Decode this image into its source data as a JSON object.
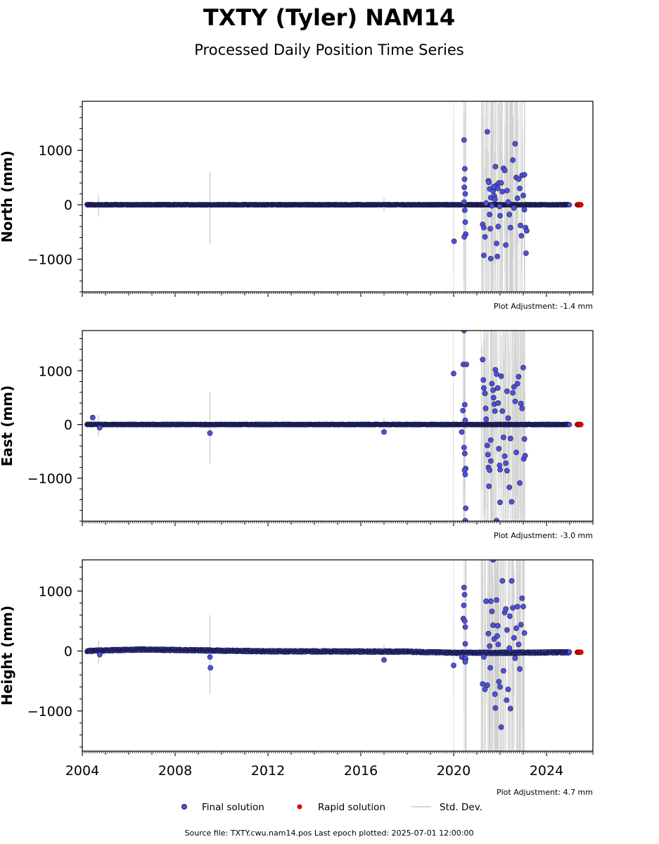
{
  "chart_data": {
    "type": "scatter",
    "title": "TXTY (Tyler) NAM14",
    "subtitle": "Processed Daily Position Time Series",
    "x_ticks": [
      "2004",
      "2008",
      "2012",
      "2016",
      "2020",
      "2024"
    ],
    "xlim": [
      2004.0,
      2026.0
    ],
    "panels": [
      {
        "ylabel": "North (mm)",
        "ylim": [
          -1600,
          1900
        ],
        "yticks": [
          -1000,
          0,
          1000
        ],
        "ytick_labels": [
          "−1000",
          "0",
          "1000"
        ],
        "adjustment": "Plot Adjustment: -1.4 mm",
        "outliers": [
          [
            2020.02,
            -670
          ],
          [
            2020.45,
            1190
          ],
          [
            2020.48,
            660
          ],
          [
            2020.47,
            470
          ],
          [
            2020.46,
            320
          ],
          [
            2020.5,
            200
          ],
          [
            2020.45,
            50
          ],
          [
            2020.48,
            -100
          ],
          [
            2020.5,
            -320
          ],
          [
            2020.52,
            -540
          ],
          [
            2020.46,
            -590
          ],
          [
            2021.25,
            -360
          ],
          [
            2021.3,
            -420
          ],
          [
            2021.35,
            -590
          ],
          [
            2021.3,
            -930
          ],
          [
            2021.45,
            1340
          ],
          [
            2021.5,
            440
          ],
          [
            2021.52,
            410
          ],
          [
            2021.55,
            290
          ],
          [
            2021.6,
            130
          ],
          [
            2021.65,
            -20
          ],
          [
            2021.55,
            -180
          ],
          [
            2021.58,
            -440
          ],
          [
            2021.6,
            -990
          ],
          [
            2021.7,
            250
          ],
          [
            2021.75,
            160
          ],
          [
            2021.78,
            100
          ],
          [
            2021.8,
            700
          ],
          [
            2021.85,
            360
          ],
          [
            2021.9,
            300
          ],
          [
            2021.95,
            400
          ],
          [
            2021.85,
            -710
          ],
          [
            2021.88,
            -950
          ],
          [
            2021.92,
            -400
          ],
          [
            2021.98,
            -30
          ],
          [
            2022.05,
            400
          ],
          [
            2022.1,
            240
          ],
          [
            2022.15,
            670
          ],
          [
            2022.2,
            630
          ],
          [
            2022.25,
            -740
          ],
          [
            2022.3,
            260
          ],
          [
            2022.35,
            50
          ],
          [
            2022.4,
            -180
          ],
          [
            2022.45,
            -420
          ],
          [
            2022.55,
            820
          ],
          [
            2022.65,
            1120
          ],
          [
            2022.7,
            500
          ],
          [
            2022.75,
            120
          ],
          [
            2022.8,
            470
          ],
          [
            2022.85,
            300
          ],
          [
            2022.88,
            -380
          ],
          [
            2022.92,
            -570
          ],
          [
            2022.95,
            540
          ],
          [
            2023.0,
            170
          ],
          [
            2023.05,
            -90
          ],
          [
            2023.1,
            -420
          ],
          [
            2023.12,
            -890
          ],
          [
            2023.15,
            -480
          ],
          [
            2023.05,
            550
          ],
          [
            2021.72,
            330
          ],
          [
            2021.4,
            30
          ],
          [
            2022.0,
            -200
          ],
          [
            2022.6,
            -60
          ]
        ],
        "drift": [
          [
            2004.0,
            0
          ],
          [
            2025.4,
            0
          ]
        ]
      },
      {
        "ylabel": "East (mm)",
        "ylim": [
          -1800,
          1750
        ],
        "yticks": [
          -1000,
          0,
          1000
        ],
        "ytick_labels": [
          "−1000",
          "0",
          "1000"
        ],
        "adjustment": "Plot Adjustment: -3.0 mm",
        "outliers": [
          [
            2004.45,
            130
          ],
          [
            2004.75,
            -60
          ],
          [
            2009.5,
            -160
          ],
          [
            2017.0,
            -140
          ],
          [
            2020.0,
            950
          ],
          [
            2020.35,
            -140
          ],
          [
            2020.4,
            260
          ],
          [
            2020.45,
            1750
          ],
          [
            2020.42,
            1120
          ],
          [
            2020.48,
            370
          ],
          [
            2020.5,
            80
          ],
          [
            2020.45,
            -430
          ],
          [
            2020.48,
            -540
          ],
          [
            2020.52,
            -820
          ],
          [
            2020.47,
            -850
          ],
          [
            2020.5,
            -930
          ],
          [
            2020.52,
            -1560
          ],
          [
            2020.5,
            -1790
          ],
          [
            2020.55,
            1120
          ],
          [
            2021.25,
            1210
          ],
          [
            2021.28,
            830
          ],
          [
            2021.3,
            680
          ],
          [
            2021.35,
            580
          ],
          [
            2021.38,
            300
          ],
          [
            2021.4,
            100
          ],
          [
            2021.45,
            -390
          ],
          [
            2021.48,
            -560
          ],
          [
            2021.5,
            -800
          ],
          [
            2021.52,
            -1150
          ],
          [
            2021.55,
            -850
          ],
          [
            2021.6,
            -680
          ],
          [
            2021.65,
            760
          ],
          [
            2021.7,
            640
          ],
          [
            2021.72,
            500
          ],
          [
            2021.75,
            380
          ],
          [
            2021.78,
            250
          ],
          [
            2021.8,
            1020
          ],
          [
            2021.85,
            940
          ],
          [
            2021.9,
            680
          ],
          [
            2021.92,
            400
          ],
          [
            2021.95,
            -450
          ],
          [
            2021.98,
            -760
          ],
          [
            2022.0,
            -840
          ],
          [
            2022.05,
            900
          ],
          [
            2022.1,
            250
          ],
          [
            2022.15,
            -240
          ],
          [
            2022.2,
            -590
          ],
          [
            2022.25,
            -720
          ],
          [
            2022.3,
            620
          ],
          [
            2022.35,
            120
          ],
          [
            2022.4,
            -1170
          ],
          [
            2022.45,
            -260
          ],
          [
            2022.5,
            -1440
          ],
          [
            2022.55,
            590
          ],
          [
            2022.6,
            700
          ],
          [
            2022.65,
            430
          ],
          [
            2022.7,
            -520
          ],
          [
            2022.75,
            760
          ],
          [
            2022.8,
            890
          ],
          [
            2022.85,
            -1090
          ],
          [
            2022.9,
            390
          ],
          [
            2022.95,
            300
          ],
          [
            2023.0,
            1060
          ],
          [
            2023.02,
            -640
          ],
          [
            2023.05,
            -270
          ],
          [
            2023.08,
            -580
          ],
          [
            2021.85,
            -1790
          ],
          [
            2022.0,
            -1450
          ],
          [
            2022.3,
            -860
          ],
          [
            2021.6,
            -290
          ]
        ],
        "drift": [
          [
            2004.0,
            0
          ],
          [
            2025.4,
            0
          ]
        ]
      },
      {
        "ylabel": "Height (mm)",
        "ylim": [
          -1670,
          1520
        ],
        "yticks": [
          -1000,
          0,
          1000
        ],
        "ytick_labels": [
          "−1000",
          "0",
          "1000"
        ],
        "adjustment": "Plot Adjustment: 4.7 mm",
        "outliers": [
          [
            2004.75,
            -60
          ],
          [
            2009.5,
            -100
          ],
          [
            2009.52,
            -280
          ],
          [
            2017.0,
            -150
          ],
          [
            2020.0,
            -240
          ],
          [
            2020.35,
            -100
          ],
          [
            2020.42,
            540
          ],
          [
            2020.45,
            1060
          ],
          [
            2020.47,
            940
          ],
          [
            2020.44,
            760
          ],
          [
            2020.48,
            500
          ],
          [
            2020.5,
            400
          ],
          [
            2020.5,
            120
          ],
          [
            2020.48,
            -130
          ],
          [
            2020.52,
            -130
          ],
          [
            2020.5,
            -180
          ],
          [
            2021.25,
            -550
          ],
          [
            2021.3,
            -100
          ],
          [
            2021.4,
            830
          ],
          [
            2021.45,
            -570
          ],
          [
            2021.5,
            290
          ],
          [
            2021.55,
            80
          ],
          [
            2021.6,
            830
          ],
          [
            2021.65,
            660
          ],
          [
            2021.7,
            430
          ],
          [
            2021.75,
            200
          ],
          [
            2021.78,
            -720
          ],
          [
            2021.8,
            -950
          ],
          [
            2021.85,
            850
          ],
          [
            2021.9,
            420
          ],
          [
            2021.92,
            110
          ],
          [
            2021.95,
            -510
          ],
          [
            2022.0,
            -600
          ],
          [
            2022.05,
            -1270
          ],
          [
            2022.1,
            1170
          ],
          [
            2022.15,
            -330
          ],
          [
            2022.2,
            640
          ],
          [
            2022.25,
            700
          ],
          [
            2022.3,
            350
          ],
          [
            2022.35,
            -640
          ],
          [
            2022.4,
            50
          ],
          [
            2022.45,
            -960
          ],
          [
            2022.5,
            1170
          ],
          [
            2022.55,
            720
          ],
          [
            2022.6,
            220
          ],
          [
            2022.65,
            -120
          ],
          [
            2022.7,
            380
          ],
          [
            2022.75,
            740
          ],
          [
            2022.8,
            110
          ],
          [
            2022.85,
            -300
          ],
          [
            2022.9,
            440
          ],
          [
            2022.95,
            880
          ],
          [
            2023.0,
            740
          ],
          [
            2023.05,
            300
          ],
          [
            2021.7,
            1520
          ],
          [
            2021.58,
            -280
          ],
          [
            2021.88,
            250
          ],
          [
            2022.28,
            -820
          ],
          [
            2021.35,
            -640
          ],
          [
            2022.42,
            580
          ]
        ],
        "drift": [
          [
            2004.0,
            0
          ],
          [
            2006.5,
            25
          ],
          [
            2012.0,
            -5
          ],
          [
            2018.0,
            -10
          ],
          [
            2020.0,
            -30
          ],
          [
            2022.0,
            -30
          ],
          [
            2025.4,
            -20
          ]
        ]
      }
    ],
    "legend": {
      "placement": "bottom",
      "entries": [
        {
          "label": "Final solution",
          "color": "#4b4fe8"
        },
        {
          "label": "Rapid solution",
          "color": "#e00000"
        },
        {
          "label": "Std. Dev.",
          "color": "#c8c8c8"
        }
      ]
    },
    "footer": "Source file: TXTY.cwu.nam14.pos  Last epoch plotted: 2025-07-01 12:00:00",
    "rapid_span": [
      2025.33,
      2025.5
    ],
    "final_end": 2025.0,
    "std_dev_spans": [
      [
        2019.98,
        2020.0
      ],
      [
        2020.42,
        2020.55
      ],
      [
        2021.18,
        2023.1
      ]
    ],
    "grid": false
  }
}
